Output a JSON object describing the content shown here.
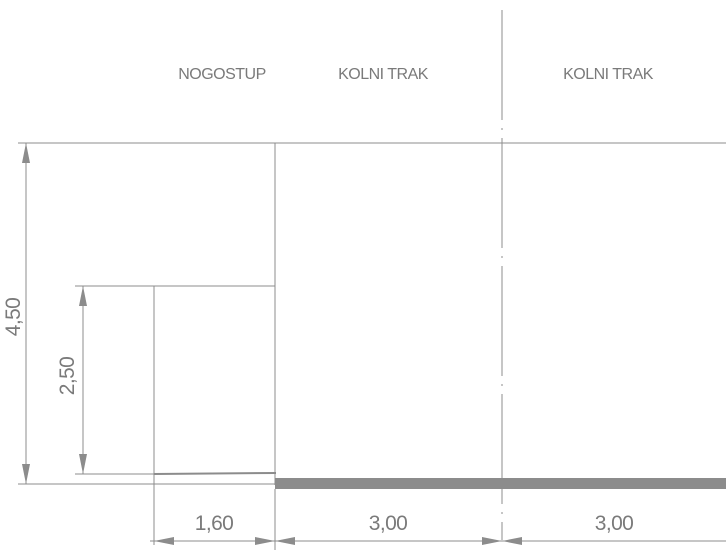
{
  "zones": {
    "sidewalk": "NOGOSTUP",
    "lane_1": "KOLNI TRAK",
    "lane_2": "KOLNI TRAK"
  },
  "dimensions": {
    "total_height": "4,50",
    "sidewalk_height": "2,50",
    "sidewalk_width": "1,60",
    "lane_1_width": "3,00",
    "lane_2_width": "3,00"
  },
  "colors": {
    "line": "#8c8c8c",
    "text": "#7a7a7a",
    "road_surface": "#8c8c8c"
  }
}
